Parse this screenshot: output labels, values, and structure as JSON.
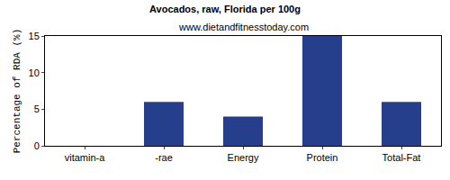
{
  "chart_data": {
    "type": "bar",
    "title": "Avocados, raw, Florida per 100g",
    "subtitle": "www.dietandfitnesstoday.com",
    "y_label": "Percentage of RDA (%)",
    "categories": [
      "vitamin-a",
      "-rae",
      "Energy",
      "Protein",
      "Total-Fat"
    ],
    "values": [
      0,
      6,
      4,
      15,
      6
    ],
    "color": "#263f8c",
    "ylim": [
      0,
      15
    ],
    "yticks": [
      0,
      5,
      10,
      15
    ],
    "grid": false
  }
}
